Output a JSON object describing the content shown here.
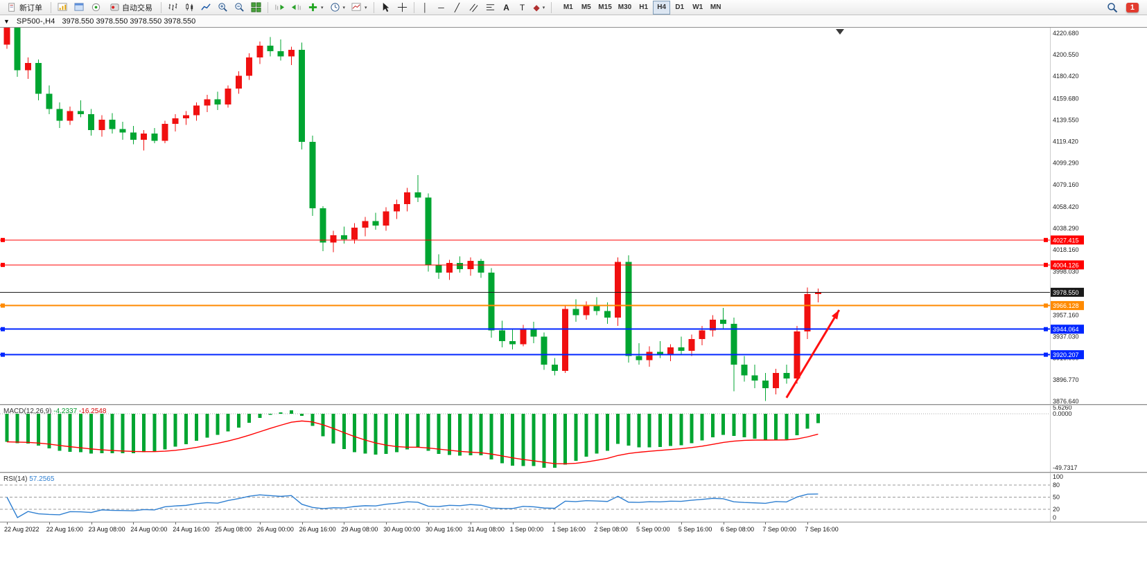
{
  "toolbar": {
    "new_order_label": "新订单",
    "autotrading_label": "自动交易",
    "timeframes": [
      "M1",
      "M5",
      "M15",
      "M30",
      "H1",
      "H4",
      "D1",
      "W1",
      "MN"
    ],
    "active_timeframe": "H4",
    "notification_count": "1",
    "icons": [
      "new-order-icon",
      "new-chart-icon",
      "profiles-icon",
      "signals-icon",
      "autotrading-icon",
      "bar-chart-icon",
      "candlestick-chart-icon",
      "line-chart-icon",
      "zoom-in-icon",
      "zoom-out-icon",
      "tile-windows-icon",
      "auto-scroll-icon",
      "chart-shift-icon",
      "indicators-icon",
      "periods-icon",
      "templates-icon",
      "cursor-icon",
      "crosshair-icon",
      "vertical-line-icon",
      "horizontal-line-icon",
      "trendline-icon",
      "equidistant-channel-icon",
      "fibonacci-icon",
      "text-icon",
      "text-label-icon",
      "arrows-icon",
      "search-icon"
    ]
  },
  "chart": {
    "symbol_period": "SP500-,H4",
    "ohlc_display": "3978.550 3978.550 3978.550 3978.550"
  },
  "chart_data": {
    "type": "candlestick",
    "symbol": "SP500-",
    "timeframe": "H4",
    "up_color": "#f01010",
    "down_color": "#00a531",
    "current_price": "3978.550",
    "price_ticks": [
      "4220.680",
      "4200.550",
      "4180.420",
      "4159.680",
      "4139.550",
      "4119.420",
      "4099.290",
      "4079.160",
      "4058.420",
      "4038.290",
      "4018.160",
      "3998.030",
      "3957.160",
      "3937.030",
      "3916.900",
      "3896.770",
      "3876.640"
    ],
    "time_labels": [
      "22 Aug 2022",
      "22 Aug 16:00",
      "23 Aug 08:00",
      "24 Aug 00:00",
      "24 Aug 16:00",
      "25 Aug 08:00",
      "26 Aug 00:00",
      "26 Aug 16:00",
      "29 Aug 08:00",
      "30 Aug 00:00",
      "30 Aug 16:00",
      "31 Aug 08:00",
      "1 Sep 00:00",
      "1 Sep 16:00",
      "2 Sep 08:00",
      "5 Sep 00:00",
      "5 Sep 16:00",
      "6 Sep 08:00",
      "7 Sep 00:00",
      "7 Sep 16:00"
    ],
    "bars_per_time_label": 4,
    "candles": [
      [
        4210,
        4230,
        4206,
        4226
      ],
      [
        4226,
        4229,
        4180,
        4186
      ],
      [
        4186,
        4198,
        4178,
        4193
      ],
      [
        4193,
        4196,
        4158,
        4164
      ],
      [
        4164,
        4172,
        4145,
        4150
      ],
      [
        4150,
        4156,
        4132,
        4139
      ],
      [
        4139,
        4152,
        4135,
        4148
      ],
      [
        4148,
        4158,
        4142,
        4145
      ],
      [
        4145,
        4150,
        4125,
        4130
      ],
      [
        4130,
        4144,
        4124,
        4140
      ],
      [
        4140,
        4146,
        4127,
        4131
      ],
      [
        4131,
        4138,
        4121,
        4128
      ],
      [
        4128,
        4134,
        4117,
        4121
      ],
      [
        4121,
        4130,
        4111,
        4127
      ],
      [
        4127,
        4132,
        4118,
        4120
      ],
      [
        4120,
        4139,
        4118,
        4136
      ],
      [
        4136,
        4145,
        4129,
        4141
      ],
      [
        4141,
        4148,
        4135,
        4144
      ],
      [
        4144,
        4156,
        4139,
        4153
      ],
      [
        4153,
        4163,
        4147,
        4159
      ],
      [
        4159,
        4166,
        4149,
        4154
      ],
      [
        4154,
        4172,
        4151,
        4169
      ],
      [
        4169,
        4185,
        4164,
        4181
      ],
      [
        4181,
        4202,
        4177,
        4198
      ],
      [
        4198,
        4213,
        4192,
        4209
      ],
      [
        4209,
        4217,
        4199,
        4204
      ],
      [
        4204,
        4215,
        4195,
        4199
      ],
      [
        4199,
        4208,
        4191,
        4205
      ],
      [
        4205,
        4212,
        4112,
        4119
      ],
      [
        4119,
        4125,
        4050,
        4057
      ],
      [
        4057,
        4059,
        4017,
        4025
      ],
      [
        4025,
        4036,
        4016,
        4032
      ],
      [
        4032,
        4040,
        4024,
        4028
      ],
      [
        4028,
        4043,
        4024,
        4039
      ],
      [
        4039,
        4049,
        4031,
        4045
      ],
      [
        4045,
        4053,
        4037,
        4041
      ],
      [
        4041,
        4058,
        4036,
        4054
      ],
      [
        4054,
        4065,
        4047,
        4061
      ],
      [
        4061,
        4076,
        4054,
        4072
      ],
      [
        4072,
        4088,
        4063,
        4067
      ],
      [
        4067,
        4071,
        3998,
        4004
      ],
      [
        4004,
        4014,
        3991,
        3997
      ],
      [
        3997,
        4009,
        3990,
        4006
      ],
      [
        4006,
        4012,
        3997,
        4000
      ],
      [
        4000,
        4011,
        3994,
        4008
      ],
      [
        4008,
        4010,
        3992,
        3997
      ],
      [
        3997,
        4001,
        3936,
        3943
      ],
      [
        3943,
        3952,
        3927,
        3933
      ],
      [
        3933,
        3944,
        3925,
        3930
      ],
      [
        3930,
        3948,
        3928,
        3945
      ],
      [
        3945,
        3951,
        3931,
        3937
      ],
      [
        3937,
        3941,
        3906,
        3911
      ],
      [
        3911,
        3917,
        3901,
        3905
      ],
      [
        3905,
        3967,
        3903,
        3963
      ],
      [
        3963,
        3972,
        3951,
        3957
      ],
      [
        3957,
        3970,
        3953,
        3966
      ],
      [
        3966,
        3974,
        3957,
        3961
      ],
      [
        3961,
        3969,
        3949,
        3955
      ],
      [
        3955,
        4011,
        3947,
        4007
      ],
      [
        4007,
        4013,
        3913,
        3919
      ],
      [
        3919,
        3931,
        3911,
        3915
      ],
      [
        3915,
        3928,
        3909,
        3923
      ],
      [
        3923,
        3933,
        3917,
        3920
      ],
      [
        3920,
        3930,
        3914,
        3927
      ],
      [
        3927,
        3937,
        3921,
        3924
      ],
      [
        3924,
        3939,
        3919,
        3935
      ],
      [
        3935,
        3947,
        3929,
        3943
      ],
      [
        3943,
        3957,
        3937,
        3953
      ],
      [
        3953,
        3964,
        3945,
        3949
      ],
      [
        3949,
        3955,
        3886,
        3911
      ],
      [
        3911,
        3919,
        3895,
        3901
      ],
      [
        3901,
        3911,
        3889,
        3896
      ],
      [
        3896,
        3903,
        3877,
        3889
      ],
      [
        3889,
        3907,
        3883,
        3903
      ],
      [
        3903,
        3911,
        3893,
        3898
      ],
      [
        3898,
        3947,
        3893,
        3942
      ],
      [
        3942,
        3983,
        3935,
        3977
      ],
      [
        3977,
        3982,
        3969,
        3978.55
      ]
    ],
    "levels": [
      {
        "label": "4027.415",
        "price": 4027.415,
        "color": "#ff0000",
        "width": 1
      },
      {
        "label": "4004.126",
        "price": 4004.126,
        "color": "#ff0000",
        "width": 1
      },
      {
        "label": "3978.550",
        "price": 3978.55,
        "color": "#1a1a1a",
        "width": 1,
        "role": "bid"
      },
      {
        "label": "3966.128",
        "price": 3966.128,
        "color": "#ff8a00",
        "width": 2
      },
      {
        "label": "3944.064",
        "price": 3944.064,
        "color": "#0026ff",
        "width": 2
      },
      {
        "label": "3920.207",
        "price": 3920.207,
        "color": "#0026ff",
        "width": 2
      }
    ],
    "trend_arrow": {
      "from_bar": 74,
      "from_price": 3880,
      "to_bar": 79,
      "to_price": 3962,
      "color": "#ff1010"
    },
    "indicators": {
      "macd": {
        "name_label": "MACD(12,26,9)",
        "value_main": "-4.2337",
        "value_signal": "-16.2548",
        "params": {
          "fast": 12,
          "slow": 26,
          "signal": 9
        },
        "axis_labels": [
          "5.6260",
          "0.0000",
          "-49.7317"
        ],
        "scale_max": 5.626,
        "scale_min": -49.7317,
        "histogram_color": "#00a531",
        "signal_color": "#ff0000"
      },
      "rsi": {
        "name_label": "RSI(14)",
        "value": "57.2565",
        "period": 14,
        "axis_labels": [
          "100",
          "80",
          "50",
          "20",
          "0"
        ],
        "axis_values": [
          100,
          80,
          50,
          20,
          0
        ],
        "level_lines": [
          80,
          50,
          20
        ],
        "line_color": "#2e7fd1"
      }
    }
  }
}
